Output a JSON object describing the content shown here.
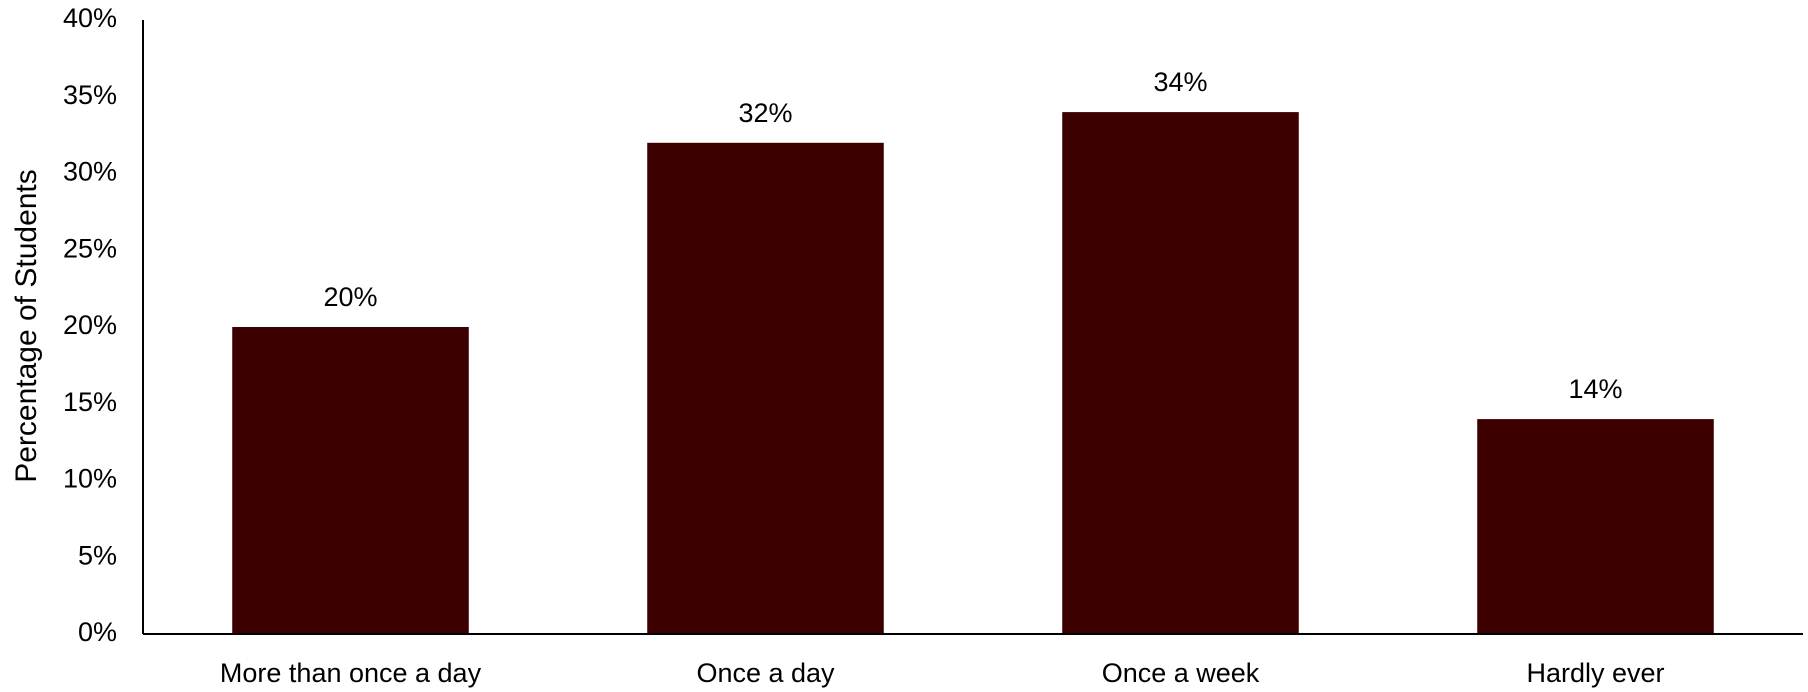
{
  "chart_data": {
    "type": "bar",
    "title": "",
    "xlabel": "",
    "ylabel": "Percentage of Students",
    "categories": [
      "More than once a day",
      "Once a day",
      "Once a week",
      "Hardly ever"
    ],
    "values": [
      20,
      32,
      34,
      14
    ],
    "data_labels": [
      "20%",
      "32%",
      "34%",
      "14%"
    ],
    "ylim": [
      0,
      40
    ],
    "yticks": [
      0,
      5,
      10,
      15,
      20,
      25,
      30,
      35,
      40
    ],
    "ytick_labels": [
      "0%",
      "5%",
      "10%",
      "15%",
      "20%",
      "25%",
      "30%",
      "35%",
      "40%"
    ],
    "grid": false,
    "legend": "none",
    "bar_color": "#3d0000",
    "axis_color": "#000000"
  }
}
